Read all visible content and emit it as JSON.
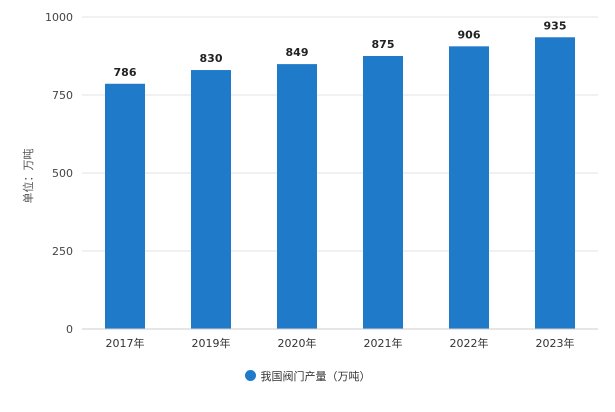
{
  "chart_data": {
    "type": "bar",
    "categories": [
      "2017年",
      "2019年",
      "2020年",
      "2021年",
      "2022年",
      "2023年"
    ],
    "series": [
      {
        "name": "我国阀门产量（万吨）",
        "values": [
          786,
          830,
          849,
          875,
          906,
          935
        ],
        "color": "#1f7ac9"
      }
    ],
    "ylabel": "单位：万吨",
    "ylim": [
      0,
      1000
    ],
    "yticks": [
      0,
      250,
      500,
      750,
      1000
    ],
    "grid": true,
    "legend": "bottom"
  }
}
